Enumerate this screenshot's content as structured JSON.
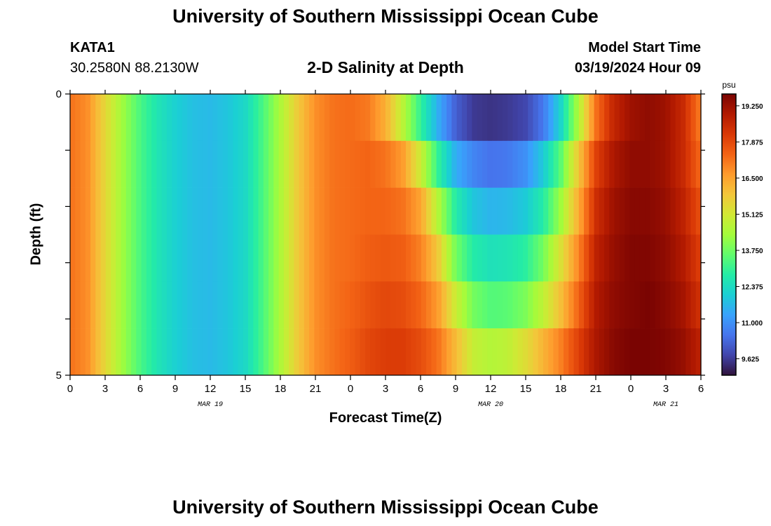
{
  "page": {
    "title": "University of Southern Mississippi Ocean Cube",
    "title_repeat": "University of Southern Mississippi Ocean Cube",
    "station_id": "KATA1",
    "coordinates": "30.2580N  88.2130W",
    "subtitle": "2-D Salinity at Depth",
    "model_start_label": "Model Start Time",
    "model_start_value": "03/19/2024 Hour 09"
  },
  "chart_data": {
    "type": "heatmap",
    "title": "2-D Salinity at Depth",
    "xlabel": "Forecast Time(Z)",
    "ylabel": "Depth (ft)",
    "x_tick_labels": [
      "0",
      "3",
      "6",
      "9",
      "12",
      "15",
      "18",
      "21",
      "0",
      "3",
      "6",
      "9",
      "12",
      "15",
      "18",
      "21",
      "0",
      "3",
      "6"
    ],
    "x_range_hours": [
      0,
      54
    ],
    "date_labels": [
      {
        "hour": 12,
        "text": "MAR 19"
      },
      {
        "hour": 36,
        "text": "MAR 20"
      },
      {
        "hour": 51,
        "text": "MAR 21"
      }
    ],
    "y_tick_labels": [
      "0",
      "5"
    ],
    "y_range_ft": [
      0,
      5
    ],
    "depth_levels_ft": [
      0,
      1,
      2,
      3,
      4,
      5
    ],
    "colorbar": {
      "unit": "psu",
      "min": 9.0,
      "max": 19.7,
      "tick_values": [
        9.625,
        11.0,
        12.375,
        13.75,
        15.125,
        16.5,
        17.875,
        19.25
      ],
      "tick_labels": [
        "9.625",
        "11.000",
        "12.375",
        "13.750",
        "15.125",
        "16.500",
        "17.875",
        "19.250"
      ],
      "colors": [
        "#30123b",
        "#4145ab",
        "#4675ed",
        "#39a2fc",
        "#1bcfd4",
        "#24eca6",
        "#61fc6c",
        "#a4fc3b",
        "#d1e834",
        "#f3c63a",
        "#fe9b2d",
        "#f36315",
        "#d93806",
        "#b11901",
        "#7a0402"
      ]
    },
    "salinity_psu": [
      [
        17.2,
        16.8,
        15.5,
        14.3,
        13.3,
        12.6,
        12.1,
        11.8,
        11.7,
        11.9,
        12.3,
        13.3,
        14.5,
        15.8,
        16.8,
        17.2,
        17.3,
        17.1,
        16.3,
        14.7,
        13.0,
        11.5,
        10.2,
        9.6,
        9.5,
        9.6,
        9.8,
        10.6,
        12.2,
        14.5,
        17.2,
        18.6,
        19.2,
        19.4,
        19.2,
        18.5,
        17.0
      ],
      [
        17.2,
        16.8,
        15.5,
        14.3,
        13.3,
        12.6,
        12.1,
        11.8,
        11.7,
        11.9,
        12.3,
        13.3,
        14.5,
        15.8,
        16.8,
        17.2,
        17.3,
        17.4,
        17.2,
        16.6,
        15.0,
        13.0,
        11.5,
        10.8,
        10.5,
        10.6,
        11.0,
        12.0,
        13.5,
        15.8,
        18.0,
        19.0,
        19.4,
        19.4,
        19.2,
        18.5,
        17.3
      ],
      [
        17.2,
        16.8,
        15.5,
        14.3,
        13.3,
        12.6,
        12.1,
        11.8,
        11.7,
        11.9,
        12.3,
        13.3,
        14.5,
        15.8,
        16.8,
        17.2,
        17.3,
        17.4,
        17.4,
        17.2,
        16.5,
        14.6,
        12.8,
        11.9,
        11.6,
        11.7,
        12.0,
        12.8,
        14.3,
        16.3,
        18.4,
        19.2,
        19.5,
        19.5,
        19.3,
        18.7,
        17.7
      ],
      [
        17.2,
        16.8,
        15.5,
        14.3,
        13.3,
        12.6,
        12.1,
        11.8,
        11.7,
        11.9,
        12.3,
        13.3,
        14.5,
        15.8,
        16.8,
        17.2,
        17.3,
        17.5,
        17.6,
        17.5,
        17.0,
        15.8,
        13.8,
        12.8,
        12.5,
        12.6,
        12.9,
        13.8,
        15.3,
        16.9,
        18.7,
        19.3,
        19.6,
        19.6,
        19.4,
        18.9,
        18.0
      ],
      [
        17.2,
        16.8,
        15.5,
        14.3,
        13.3,
        12.6,
        12.1,
        11.8,
        11.7,
        11.9,
        12.3,
        13.3,
        14.5,
        15.8,
        16.8,
        17.2,
        17.4,
        17.7,
        17.9,
        17.8,
        17.4,
        16.6,
        15.0,
        13.8,
        13.4,
        13.5,
        13.9,
        14.8,
        16.0,
        17.4,
        18.9,
        19.4,
        19.6,
        19.7,
        19.5,
        19.1,
        18.3
      ],
      [
        17.2,
        16.8,
        15.5,
        14.3,
        13.3,
        12.6,
        12.1,
        11.8,
        11.7,
        11.9,
        12.3,
        13.3,
        14.5,
        15.8,
        16.8,
        17.2,
        17.5,
        17.9,
        18.1,
        18.1,
        17.8,
        17.2,
        16.1,
        14.9,
        14.6,
        14.8,
        15.4,
        16.2,
        17.0,
        18.0,
        19.0,
        19.5,
        19.7,
        19.7,
        19.6,
        19.3,
        18.7
      ]
    ]
  }
}
